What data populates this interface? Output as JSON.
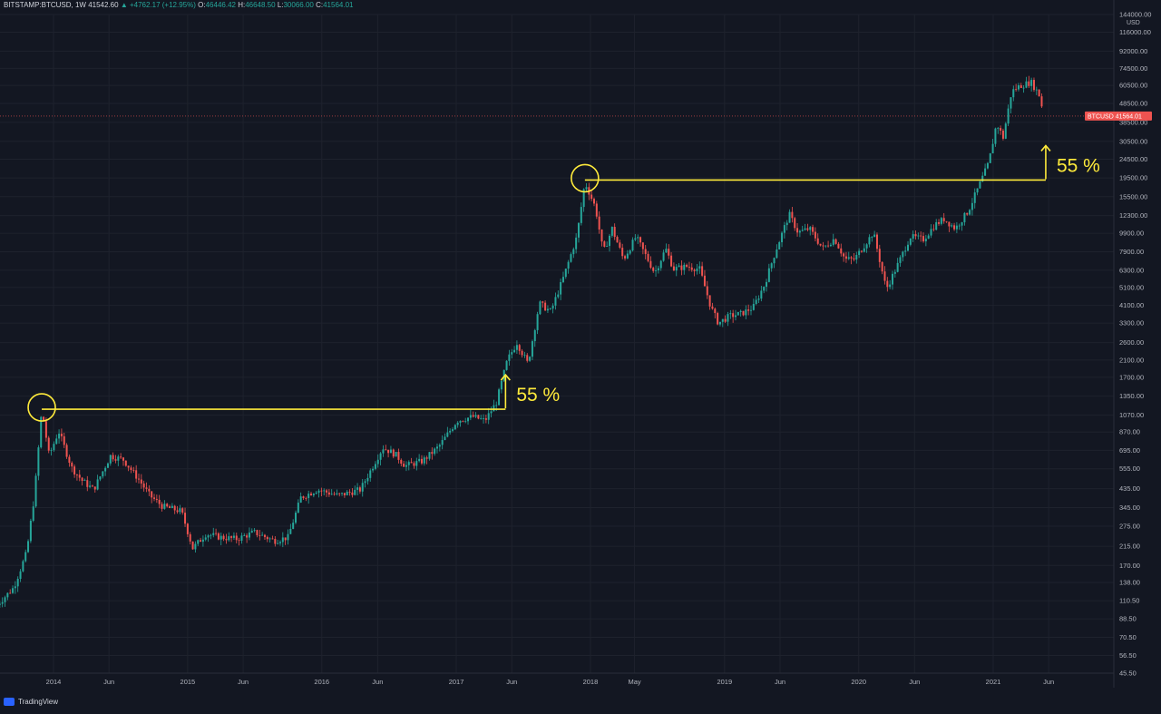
{
  "header": {
    "symbol": "BITSTAMP:BTCUSD, 1W",
    "last": "41542.60",
    "change": "▲ +4762.17 (+12.95%)",
    "o_label": "O:",
    "o_val": "46446.42",
    "h_label": "H:",
    "h_val": "46648.50",
    "l_label": "L:",
    "l_val": "30066.00",
    "c_label": "C:",
    "c_val": "41564.01"
  },
  "footer": {
    "brand": "TradingView"
  },
  "price_tag": {
    "label": "BTCUSD",
    "value": "41564.01"
  },
  "currency": "USD",
  "annotations": [
    {
      "text": "55 %"
    },
    {
      "text": "55 %"
    }
  ],
  "colors": {
    "up": "#26a69a",
    "down": "#ef5350",
    "annotation": "#ffeb3b",
    "bg": "#131722"
  },
  "chart_data": {
    "type": "candlestick",
    "yscale": "log",
    "ylim": [
      45.5,
      144000
    ],
    "y_ticks": [
      "144000.00",
      "116000.00",
      "92000.00",
      "74500.00",
      "60500.00",
      "48500.00",
      "38500.00",
      "30500.00",
      "24500.00",
      "19500.00",
      "15500.00",
      "12300.00",
      "9900.00",
      "7900.00",
      "6300.00",
      "5100.00",
      "4100.00",
      "3300.00",
      "2600.00",
      "2100.00",
      "1700.00",
      "1350.00",
      "1070.00",
      "870.00",
      "695.00",
      "555.00",
      "435.00",
      "345.00",
      "275.00",
      "215.00",
      "170.00",
      "138.00",
      "110.50",
      "88.50",
      "70.50",
      "56.50",
      "45.50"
    ],
    "x_ticks": [
      {
        "label": "2014",
        "date": "2014-01-01"
      },
      {
        "label": "Jun",
        "date": "2014-06-01"
      },
      {
        "label": "2015",
        "date": "2015-01-01"
      },
      {
        "label": "Jun",
        "date": "2015-06-01"
      },
      {
        "label": "2016",
        "date": "2016-01-01"
      },
      {
        "label": "Jun",
        "date": "2016-06-01"
      },
      {
        "label": "2017",
        "date": "2017-01-01"
      },
      {
        "label": "Jun",
        "date": "2017-06-01"
      },
      {
        "label": "2018",
        "date": "2018-01-01"
      },
      {
        "label": "May",
        "date": "2018-05-01"
      },
      {
        "label": "2019",
        "date": "2019-01-01"
      },
      {
        "label": "Jun",
        "date": "2019-06-01"
      },
      {
        "label": "2020",
        "date": "2020-01-01"
      },
      {
        "label": "Jun",
        "date": "2020-06-01"
      },
      {
        "label": "2021",
        "date": "2021-01-01"
      },
      {
        "label": "Jun",
        "date": "2021-06-01"
      }
    ],
    "series": [
      {
        "date": "2013-08-01",
        "value": 105
      },
      {
        "date": "2013-09-15",
        "value": 130
      },
      {
        "date": "2013-10-20",
        "value": 200
      },
      {
        "date": "2013-11-10",
        "value": 400
      },
      {
        "date": "2013-11-30",
        "value": 1150
      },
      {
        "date": "2013-12-20",
        "value": 650
      },
      {
        "date": "2014-01-15",
        "value": 880
      },
      {
        "date": "2014-02-20",
        "value": 560
      },
      {
        "date": "2014-03-20",
        "value": 480
      },
      {
        "date": "2014-04-20",
        "value": 430
      },
      {
        "date": "2014-06-05",
        "value": 650
      },
      {
        "date": "2014-07-10",
        "value": 620
      },
      {
        "date": "2014-08-20",
        "value": 490
      },
      {
        "date": "2014-09-20",
        "value": 400
      },
      {
        "date": "2014-10-25",
        "value": 350
      },
      {
        "date": "2014-12-15",
        "value": 330
      },
      {
        "date": "2015-01-15",
        "value": 210
      },
      {
        "date": "2015-02-20",
        "value": 250
      },
      {
        "date": "2015-04-01",
        "value": 240
      },
      {
        "date": "2015-05-15",
        "value": 235
      },
      {
        "date": "2015-07-01",
        "value": 255
      },
      {
        "date": "2015-08-25",
        "value": 230
      },
      {
        "date": "2015-10-01",
        "value": 240
      },
      {
        "date": "2015-11-05",
        "value": 390
      },
      {
        "date": "2015-12-20",
        "value": 430
      },
      {
        "date": "2016-02-15",
        "value": 400
      },
      {
        "date": "2016-04-15",
        "value": 430
      },
      {
        "date": "2016-06-15",
        "value": 720
      },
      {
        "date": "2016-07-20",
        "value": 660
      },
      {
        "date": "2016-08-15",
        "value": 575
      },
      {
        "date": "2016-10-01",
        "value": 610
      },
      {
        "date": "2016-11-15",
        "value": 730
      },
      {
        "date": "2017-01-03",
        "value": 1000
      },
      {
        "date": "2017-02-15",
        "value": 1050
      },
      {
        "date": "2017-03-20",
        "value": 1000
      },
      {
        "date": "2017-04-20",
        "value": 1250
      },
      {
        "date": "2017-05-20",
        "value": 2100
      },
      {
        "date": "2017-06-15",
        "value": 2600
      },
      {
        "date": "2017-07-15",
        "value": 2000
      },
      {
        "date": "2017-08-15",
        "value": 4200
      },
      {
        "date": "2017-09-15",
        "value": 3800
      },
      {
        "date": "2017-10-20",
        "value": 5800
      },
      {
        "date": "2017-11-25",
        "value": 9500
      },
      {
        "date": "2017-12-17",
        "value": 18500
      },
      {
        "date": "2018-01-15",
        "value": 13500
      },
      {
        "date": "2018-02-05",
        "value": 7800
      },
      {
        "date": "2018-03-01",
        "value": 10500
      },
      {
        "date": "2018-04-01",
        "value": 7200
      },
      {
        "date": "2018-05-05",
        "value": 9500
      },
      {
        "date": "2018-06-25",
        "value": 6100
      },
      {
        "date": "2018-07-25",
        "value": 8200
      },
      {
        "date": "2018-08-15",
        "value": 6400
      },
      {
        "date": "2018-09-20",
        "value": 6600
      },
      {
        "date": "2018-10-25",
        "value": 6400
      },
      {
        "date": "2018-11-25",
        "value": 4000
      },
      {
        "date": "2018-12-15",
        "value": 3300
      },
      {
        "date": "2019-01-15",
        "value": 3600
      },
      {
        "date": "2019-02-15",
        "value": 3700
      },
      {
        "date": "2019-03-20",
        "value": 4000
      },
      {
        "date": "2019-04-20",
        "value": 5300
      },
      {
        "date": "2019-05-20",
        "value": 8000
      },
      {
        "date": "2019-06-26",
        "value": 12500
      },
      {
        "date": "2019-07-20",
        "value": 10000
      },
      {
        "date": "2019-08-20",
        "value": 10500
      },
      {
        "date": "2019-09-25",
        "value": 8200
      },
      {
        "date": "2019-10-27",
        "value": 9300
      },
      {
        "date": "2019-11-25",
        "value": 7200
      },
      {
        "date": "2019-12-20",
        "value": 7200
      },
      {
        "date": "2020-02-10",
        "value": 10000
      },
      {
        "date": "2020-03-16",
        "value": 5000
      },
      {
        "date": "2020-04-20",
        "value": 7000
      },
      {
        "date": "2020-05-20",
        "value": 9500
      },
      {
        "date": "2020-06-25",
        "value": 9200
      },
      {
        "date": "2020-07-27",
        "value": 11000
      },
      {
        "date": "2020-08-20",
        "value": 11800
      },
      {
        "date": "2020-09-20",
        "value": 10500
      },
      {
        "date": "2020-10-25",
        "value": 13000
      },
      {
        "date": "2020-11-25",
        "value": 18000
      },
      {
        "date": "2020-12-20",
        "value": 23500
      },
      {
        "date": "2021-01-10",
        "value": 38000
      },
      {
        "date": "2021-01-28",
        "value": 32000
      },
      {
        "date": "2021-02-20",
        "value": 56000
      },
      {
        "date": "2021-03-13",
        "value": 60000
      },
      {
        "date": "2021-04-14",
        "value": 63000
      },
      {
        "date": "2021-05-01",
        "value": 56000
      },
      {
        "date": "2021-05-10",
        "value": 52000
      },
      {
        "date": "2021-05-17",
        "value": 41564
      }
    ],
    "levels": [
      {
        "value": 1150,
        "x_start": "2013-11-30",
        "x_end": "2017-05-15"
      },
      {
        "value": 19000,
        "x_start": "2017-12-17",
        "x_end": "2021-05-24"
      }
    ],
    "current_price": 41564.01
  }
}
